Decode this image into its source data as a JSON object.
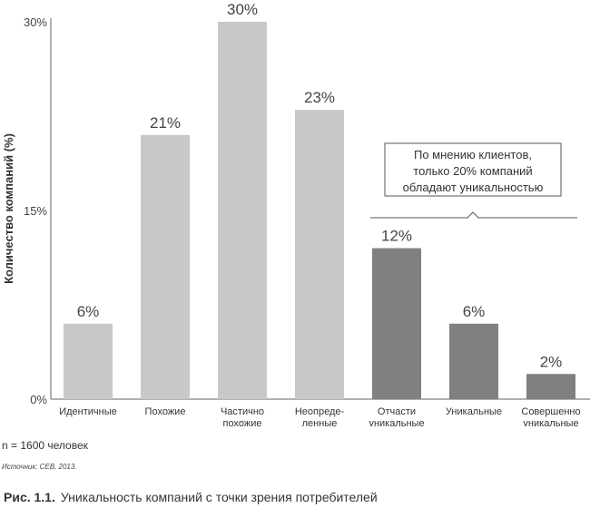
{
  "chart_data": {
    "type": "bar",
    "ylabel": "Количество компаний (%)",
    "ylim": [
      0,
      30
    ],
    "yticks": [
      {
        "value": 0,
        "label": "0%"
      },
      {
        "value": 15,
        "label": "15%"
      },
      {
        "value": 30,
        "label": "30%"
      }
    ],
    "grid": false,
    "categories": [
      [
        "Идентичные"
      ],
      [
        "Похожие"
      ],
      [
        "Частично",
        "похожие"
      ],
      [
        "Неопреде-",
        "ленные"
      ],
      [
        "Отчасти",
        "уникальные"
      ],
      [
        "Уникальные"
      ],
      [
        "Совершенно",
        "уникальные"
      ]
    ],
    "values": [
      6,
      21,
      30,
      23,
      12,
      6,
      2
    ],
    "value_labels": [
      "6%",
      "21%",
      "30%",
      "23%",
      "12%",
      "6%",
      "2%"
    ],
    "bar_colors": [
      "#c8c8c8",
      "#c8c8c8",
      "#c8c8c8",
      "#c8c8c8",
      "#808080",
      "#808080",
      "#808080"
    ],
    "annotation": {
      "lines": [
        "По мнению клиентов,",
        "только 20% компаний",
        "обладают уникальностью"
      ],
      "applies_to_categories": [
        4,
        5,
        6
      ]
    }
  },
  "note": "n = 1600 человек",
  "source": "Источник: CEB, 2013.",
  "caption": {
    "figure": "Рис. 1.1.",
    "text": "Уникальность компаний с точки зрения потребителей"
  }
}
